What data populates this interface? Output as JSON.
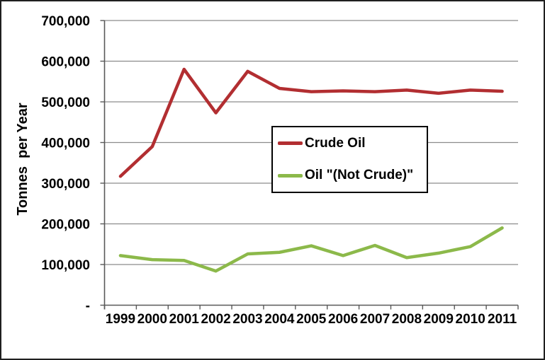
{
  "colors": {
    "crude_oil_line": "#B22E31",
    "not_crude_line": "#8CB94A",
    "gridline": "#8C8C8C",
    "axis": "#595959",
    "frame": "#1F1F1F",
    "background": "#FFFFFF"
  },
  "chart_data": {
    "type": "line",
    "title": "",
    "xlabel": "",
    "ylabel": "Tonnes  per Year",
    "categories": [
      "1999",
      "2000",
      "2001",
      "2002",
      "2003",
      "2004",
      "2005",
      "2006",
      "2007",
      "2008",
      "2009",
      "2010",
      "2011"
    ],
    "series": [
      {
        "name": "Crude Oil",
        "color": "#B22E31",
        "values": [
          317000,
          390000,
          580000,
          473000,
          575000,
          533000,
          525000,
          527000,
          525000,
          529000,
          521000,
          529000,
          526000
        ]
      },
      {
        "name": "Oil \"(Not Crude)\"",
        "color": "#8CB94A",
        "values": [
          122000,
          112000,
          110000,
          84000,
          126000,
          130000,
          146000,
          122000,
          147000,
          117000,
          128000,
          144000,
          190000
        ]
      }
    ],
    "ylim": [
      0,
      700000
    ],
    "y_tick_step": 100000,
    "y_tick_labels": [
      "-",
      "100,000",
      "200,000",
      "300,000",
      "400,000",
      "500,000",
      "600,000",
      "700,000"
    ],
    "grid": true,
    "legend_position": "center-boxed"
  }
}
